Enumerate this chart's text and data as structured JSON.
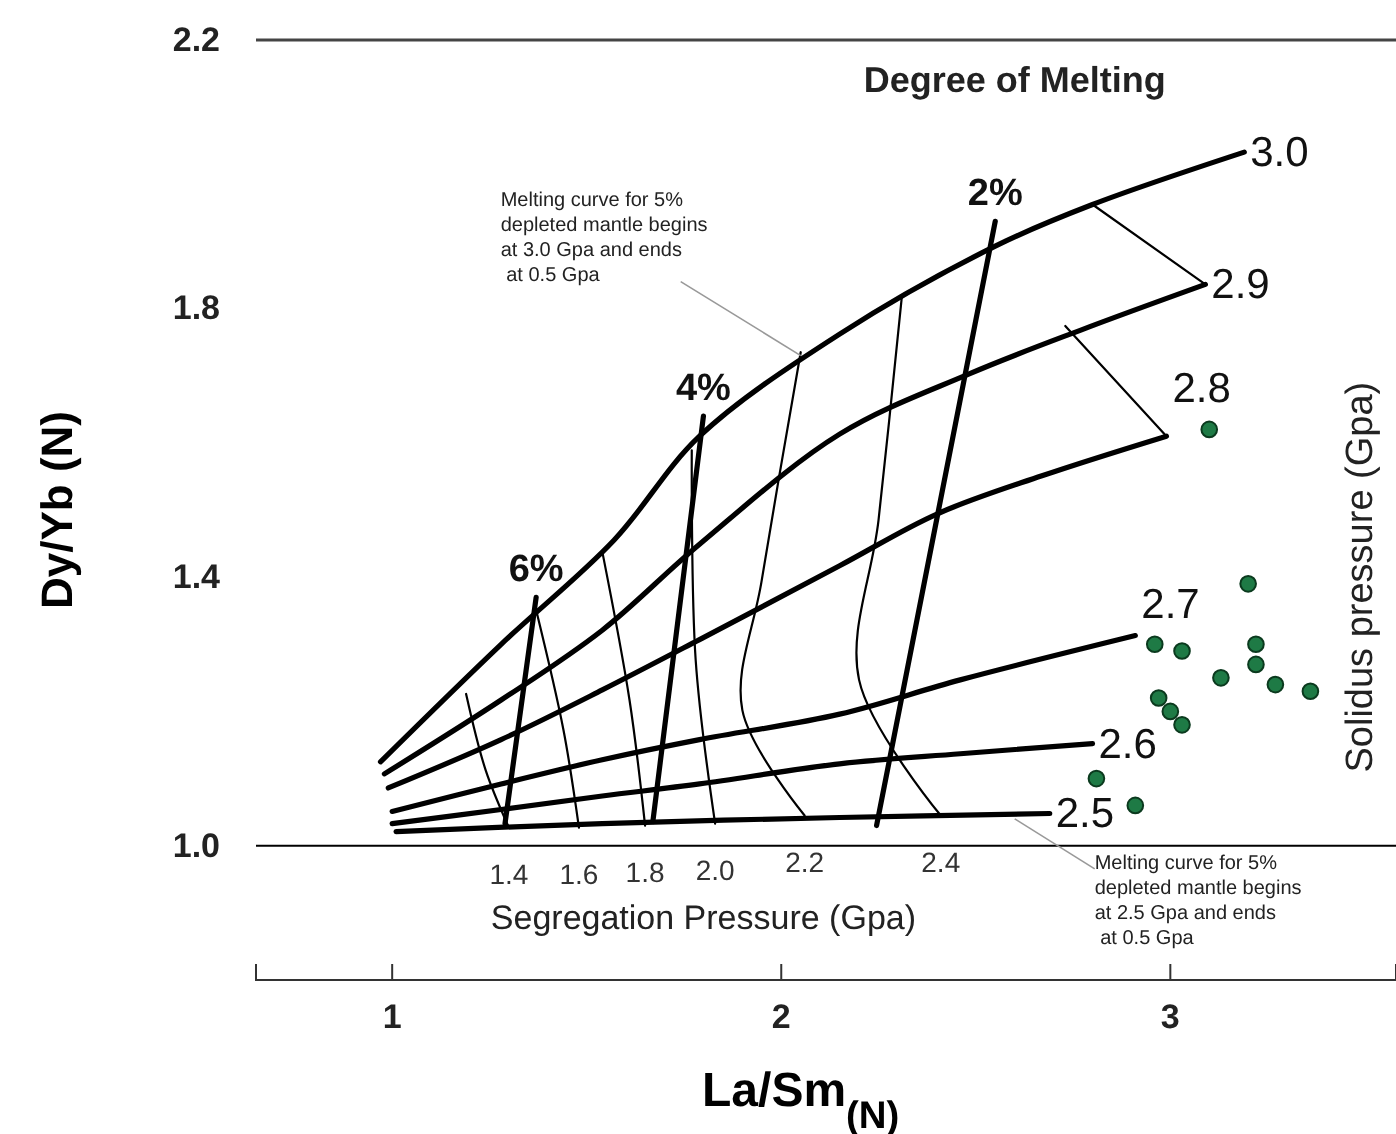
{
  "chart_data": {
    "type": "line",
    "xlabel": "La/Sm$_{(N)}$",
    "ylabel": "Dy/Yb (N)",
    "y2label": "Solidus pressure (Gpa)",
    "xlim": [
      0.65,
      3.58
    ],
    "ylim": [
      0.8,
      2.2
    ],
    "xticks": [
      1,
      2,
      3
    ],
    "yticks": [
      {
        "value": 1,
        "label": "1.0"
      },
      {
        "value": 1.4,
        "label": "1.4"
      },
      {
        "value": 1.8,
        "label": "1.8"
      },
      {
        "value": 2.2,
        "label": "2.2"
      }
    ],
    "grid": false,
    "legend": false,
    "marker": "none",
    "ref_lines": [
      {
        "axis": "y",
        "value": 1,
        "color": "#000000"
      }
    ],
    "annotations": [
      "Degree of Melting",
      "Segregation Pressure (Gpa)",
      {
        "text": "Melting curve for 5%\ndepleted mantle begins\nat 3.0 Gpa and ends\n at 0.5 Gpa",
        "x": 2.05,
        "y": 1.73
      },
      {
        "text": "Melting curve for 5%\ndepleted mantle begins\nat 2.5 Gpa and ends\n at 0.5 Gpa",
        "x": 2.6,
        "y": 1.04
      }
    ],
    "series": [
      {
        "name": "3.0",
        "color": "#000000",
        "x": [
          0.97,
          1.28,
          1.57,
          1.79,
          2.15,
          2.55,
          2.8,
          3.19
        ],
        "values": [
          1.125,
          1.3,
          1.455,
          1.61,
          1.762,
          1.893,
          1.955,
          2.033
        ]
      },
      {
        "name": "2.9",
        "color": "#000000",
        "x": [
          0.98,
          1.28,
          1.54,
          1.79,
          2.15,
          2.48,
          2.77,
          3.09
        ],
        "values": [
          1.107,
          1.217,
          1.321,
          1.449,
          1.613,
          1.702,
          1.768,
          1.836
        ]
      },
      {
        "name": "2.8",
        "color": "#000000",
        "x": [
          0.99,
          1.28,
          1.54,
          1.79,
          2.15,
          2.4,
          2.67,
          2.99
        ],
        "values": [
          1.086,
          1.158,
          1.232,
          1.307,
          1.417,
          1.494,
          1.551,
          1.61
        ]
      },
      {
        "name": "2.7",
        "color": "#000000",
        "x": [
          1.0,
          1.28,
          1.54,
          1.79,
          2.15,
          2.46,
          2.91
        ],
        "values": [
          1.051,
          1.092,
          1.128,
          1.158,
          1.196,
          1.247,
          1.313
        ]
      },
      {
        "name": "2.6",
        "color": "#000000",
        "x": [
          1.0,
          1.28,
          1.54,
          1.79,
          2.15,
          2.46,
          2.8
        ],
        "values": [
          1.033,
          1.054,
          1.074,
          1.092,
          1.122,
          1.137,
          1.152
        ]
      },
      {
        "name": "2.5",
        "color": "#000000",
        "x": [
          1.01,
          1.54,
          2.15,
          2.69
        ],
        "values": [
          1.021,
          1.033,
          1.042,
          1.048
        ]
      },
      {
        "name": "6%",
        "color": "#000000",
        "x": [
          1.29,
          1.37
        ],
        "values": [
          1.033,
          1.37
        ]
      },
      {
        "name": "4%",
        "color": "#000000",
        "x": [
          1.67,
          1.8
        ],
        "values": [
          1.036,
          1.64
        ]
      },
      {
        "name": "2%",
        "color": "#000000",
        "x": [
          2.245,
          2.55
        ],
        "values": [
          1.03,
          1.93
        ]
      },
      {
        "name": "1.4",
        "color": "#000000",
        "x": [
          1.19,
          1.24,
          1.3
        ],
        "values": [
          1.226,
          1.113,
          1.027
        ]
      },
      {
        "name": "1.6",
        "color": "#000000",
        "x": [
          1.37,
          1.44,
          1.48
        ],
        "values": [
          1.351,
          1.173,
          1.027
        ]
      },
      {
        "name": "1.8",
        "color": "#000000",
        "x": [
          1.54,
          1.61,
          1.65
        ],
        "values": [
          1.438,
          1.217,
          1.03
        ]
      },
      {
        "name": "2.0",
        "color": "#000000",
        "x": [
          1.77,
          1.78,
          1.83
        ],
        "values": [
          1.589,
          1.277,
          1.033
        ]
      },
      {
        "name": "2.2",
        "color": "#000000",
        "x": [
          2.05,
          1.95,
          1.9,
          2.06
        ],
        "values": [
          1.735,
          1.396,
          1.202,
          1.045
        ]
      },
      {
        "name": "2.4",
        "color": "#000000",
        "x": [
          2.31,
          2.25,
          2.2,
          2.41
        ],
        "values": [
          1.818,
          1.485,
          1.247,
          1.045
        ]
      },
      {
        "color": "#000000",
        "x": [
          2.8,
          3.09
        ],
        "values": [
          1.955,
          1.836
        ]
      },
      {
        "color": "#000000",
        "x": [
          2.73,
          2.99
        ],
        "values": [
          1.774,
          1.61
        ]
      },
      {
        "type": "scatter",
        "color": "#1e7a45",
        "marker": "circle",
        "x": [
          3.1,
          3.2,
          2.96,
          3.03,
          3.22,
          3.22,
          3.13,
          3.27,
          3.36,
          2.97,
          3.0,
          3.03,
          2.81,
          2.91
        ],
        "values": [
          1.62,
          1.39,
          1.3,
          1.29,
          1.3,
          1.27,
          1.25,
          1.24,
          1.23,
          1.22,
          1.2,
          1.18,
          1.1,
          1.06
        ]
      }
    ]
  }
}
